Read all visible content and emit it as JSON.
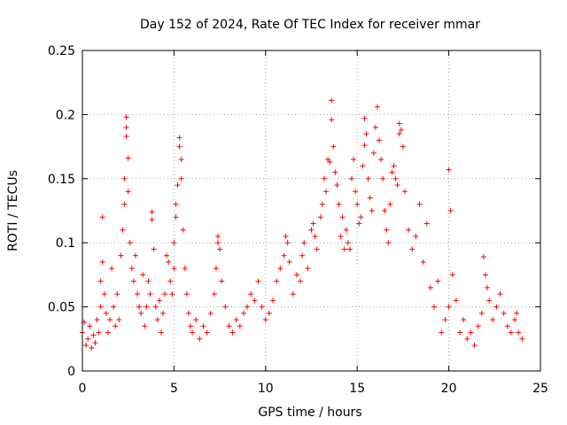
{
  "chart_data": {
    "type": "scatter",
    "title": "Day 152 of 2024, Rate Of TEC Index for receiver mmar",
    "xlabel": "GPS time / hours",
    "ylabel": "ROTI / TECUs",
    "xlim": [
      0,
      25
    ],
    "ylim": [
      0,
      0.25
    ],
    "x_ticks": [
      0,
      5,
      10,
      15,
      20,
      25
    ],
    "y_ticks": [
      0,
      0.05,
      0.1,
      0.15,
      0.2,
      0.25
    ],
    "x_tick_labels": [
      "0",
      "5",
      "10",
      "15",
      "20",
      "25"
    ],
    "y_tick_labels": [
      "0",
      "0.05",
      "0.1",
      "0.15",
      "0.2",
      "0.25"
    ],
    "grid": true,
    "marker": "+",
    "color": "#ff0000",
    "points": [
      [
        0.0,
        0.03
      ],
      [
        0.1,
        0.038
      ],
      [
        0.2,
        0.02
      ],
      [
        0.3,
        0.025
      ],
      [
        0.4,
        0.035
      ],
      [
        0.5,
        0.018
      ],
      [
        0.6,
        0.028
      ],
      [
        0.7,
        0.022
      ],
      [
        0.8,
        0.04
      ],
      [
        0.9,
        0.03
      ],
      [
        1.0,
        0.05
      ],
      [
        1.0,
        0.07
      ],
      [
        1.1,
        0.12
      ],
      [
        1.1,
        0.085
      ],
      [
        1.2,
        0.06
      ],
      [
        1.3,
        0.045
      ],
      [
        1.4,
        0.03
      ],
      [
        1.5,
        0.04
      ],
      [
        1.6,
        0.08
      ],
      [
        1.7,
        0.05
      ],
      [
        1.8,
        0.035
      ],
      [
        1.9,
        0.06
      ],
      [
        2.0,
        0.04
      ],
      [
        2.1,
        0.09
      ],
      [
        2.2,
        0.11
      ],
      [
        2.3,
        0.15
      ],
      [
        2.3,
        0.13
      ],
      [
        2.4,
        0.198
      ],
      [
        2.4,
        0.19
      ],
      [
        2.4,
        0.183
      ],
      [
        2.5,
        0.166
      ],
      [
        2.5,
        0.14
      ],
      [
        2.6,
        0.1
      ],
      [
        2.7,
        0.08
      ],
      [
        2.8,
        0.07
      ],
      [
        2.9,
        0.09
      ],
      [
        3.0,
        0.06
      ],
      [
        3.1,
        0.05
      ],
      [
        3.2,
        0.045
      ],
      [
        3.3,
        0.075
      ],
      [
        3.4,
        0.035
      ],
      [
        3.5,
        0.05
      ],
      [
        3.6,
        0.07
      ],
      [
        3.7,
        0.06
      ],
      [
        3.8,
        0.124
      ],
      [
        3.8,
        0.118
      ],
      [
        3.9,
        0.095
      ],
      [
        4.0,
        0.05
      ],
      [
        4.1,
        0.04
      ],
      [
        4.2,
        0.055
      ],
      [
        4.3,
        0.03
      ],
      [
        4.4,
        0.045
      ],
      [
        4.5,
        0.06
      ],
      [
        4.6,
        0.09
      ],
      [
        4.7,
        0.085
      ],
      [
        4.8,
        0.07
      ],
      [
        4.9,
        0.06
      ],
      [
        5.0,
        0.1
      ],
      [
        5.0,
        0.08
      ],
      [
        5.1,
        0.12
      ],
      [
        5.1,
        0.13
      ],
      [
        5.2,
        0.145
      ],
      [
        5.3,
        0.182
      ],
      [
        5.3,
        0.175
      ],
      [
        5.4,
        0.165
      ],
      [
        5.4,
        0.15
      ],
      [
        5.5,
        0.11
      ],
      [
        5.6,
        0.08
      ],
      [
        5.7,
        0.06
      ],
      [
        5.8,
        0.045
      ],
      [
        5.9,
        0.035
      ],
      [
        6.0,
        0.03
      ],
      [
        6.2,
        0.04
      ],
      [
        6.4,
        0.025
      ],
      [
        6.6,
        0.035
      ],
      [
        6.8,
        0.03
      ],
      [
        7.0,
        0.045
      ],
      [
        7.2,
        0.06
      ],
      [
        7.3,
        0.08
      ],
      [
        7.4,
        0.105
      ],
      [
        7.4,
        0.1
      ],
      [
        7.5,
        0.095
      ],
      [
        7.6,
        0.07
      ],
      [
        7.8,
        0.05
      ],
      [
        8.0,
        0.035
      ],
      [
        8.2,
        0.03
      ],
      [
        8.4,
        0.04
      ],
      [
        8.6,
        0.035
      ],
      [
        8.8,
        0.045
      ],
      [
        9.0,
        0.05
      ],
      [
        9.2,
        0.06
      ],
      [
        9.4,
        0.055
      ],
      [
        9.6,
        0.07
      ],
      [
        9.8,
        0.05
      ],
      [
        10.0,
        0.04
      ],
      [
        10.2,
        0.045
      ],
      [
        10.4,
        0.055
      ],
      [
        10.6,
        0.07
      ],
      [
        10.8,
        0.08
      ],
      [
        11.0,
        0.09
      ],
      [
        11.1,
        0.105
      ],
      [
        11.2,
        0.1
      ],
      [
        11.3,
        0.085
      ],
      [
        11.5,
        0.06
      ],
      [
        11.7,
        0.075
      ],
      [
        11.9,
        0.07
      ],
      [
        12.0,
        0.09
      ],
      [
        12.1,
        0.1
      ],
      [
        12.3,
        0.08
      ],
      [
        12.5,
        0.11
      ],
      [
        12.6,
        0.115
      ],
      [
        12.7,
        0.105
      ],
      [
        12.8,
        0.095
      ],
      [
        13.0,
        0.12
      ],
      [
        13.1,
        0.13
      ],
      [
        13.2,
        0.15
      ],
      [
        13.3,
        0.14
      ],
      [
        13.4,
        0.165
      ],
      [
        13.5,
        0.163
      ],
      [
        13.6,
        0.211
      ],
      [
        13.6,
        0.196
      ],
      [
        13.7,
        0.175
      ],
      [
        13.8,
        0.155
      ],
      [
        13.9,
        0.145
      ],
      [
        14.0,
        0.13
      ],
      [
        14.1,
        0.105
      ],
      [
        14.2,
        0.12
      ],
      [
        14.3,
        0.095
      ],
      [
        14.4,
        0.11
      ],
      [
        14.5,
        0.1
      ],
      [
        14.6,
        0.095
      ],
      [
        14.7,
        0.15
      ],
      [
        14.8,
        0.165
      ],
      [
        14.9,
        0.14
      ],
      [
        15.0,
        0.13
      ],
      [
        15.1,
        0.115
      ],
      [
        15.2,
        0.12
      ],
      [
        15.3,
        0.16
      ],
      [
        15.4,
        0.197
      ],
      [
        15.4,
        0.176
      ],
      [
        15.5,
        0.185
      ],
      [
        15.6,
        0.15
      ],
      [
        15.7,
        0.135
      ],
      [
        15.8,
        0.125
      ],
      [
        15.9,
        0.17
      ],
      [
        16.0,
        0.19
      ],
      [
        16.1,
        0.206
      ],
      [
        16.2,
        0.18
      ],
      [
        16.3,
        0.165
      ],
      [
        16.4,
        0.15
      ],
      [
        16.5,
        0.125
      ],
      [
        16.6,
        0.11
      ],
      [
        16.7,
        0.1
      ],
      [
        16.8,
        0.13
      ],
      [
        16.9,
        0.155
      ],
      [
        17.0,
        0.16
      ],
      [
        17.1,
        0.15
      ],
      [
        17.2,
        0.145
      ],
      [
        17.3,
        0.193
      ],
      [
        17.3,
        0.185
      ],
      [
        17.4,
        0.188
      ],
      [
        17.5,
        0.175
      ],
      [
        17.6,
        0.14
      ],
      [
        17.8,
        0.11
      ],
      [
        18.0,
        0.095
      ],
      [
        18.2,
        0.105
      ],
      [
        18.4,
        0.13
      ],
      [
        18.6,
        0.085
      ],
      [
        18.8,
        0.115
      ],
      [
        19.0,
        0.065
      ],
      [
        19.2,
        0.05
      ],
      [
        19.4,
        0.07
      ],
      [
        19.6,
        0.03
      ],
      [
        19.8,
        0.04
      ],
      [
        20.0,
        0.05
      ],
      [
        20.0,
        0.157
      ],
      [
        20.1,
        0.125
      ],
      [
        20.2,
        0.075
      ],
      [
        20.4,
        0.055
      ],
      [
        20.6,
        0.03
      ],
      [
        20.8,
        0.04
      ],
      [
        21.0,
        0.025
      ],
      [
        21.2,
        0.03
      ],
      [
        21.4,
        0.02
      ],
      [
        21.6,
        0.035
      ],
      [
        21.8,
        0.045
      ],
      [
        21.9,
        0.089
      ],
      [
        22.0,
        0.075
      ],
      [
        22.1,
        0.065
      ],
      [
        22.2,
        0.055
      ],
      [
        22.4,
        0.04
      ],
      [
        22.6,
        0.05
      ],
      [
        22.8,
        0.06
      ],
      [
        23.0,
        0.045
      ],
      [
        23.2,
        0.035
      ],
      [
        23.4,
        0.03
      ],
      [
        23.6,
        0.04
      ],
      [
        23.7,
        0.045
      ],
      [
        23.8,
        0.03
      ],
      [
        24.0,
        0.025
      ]
    ]
  }
}
